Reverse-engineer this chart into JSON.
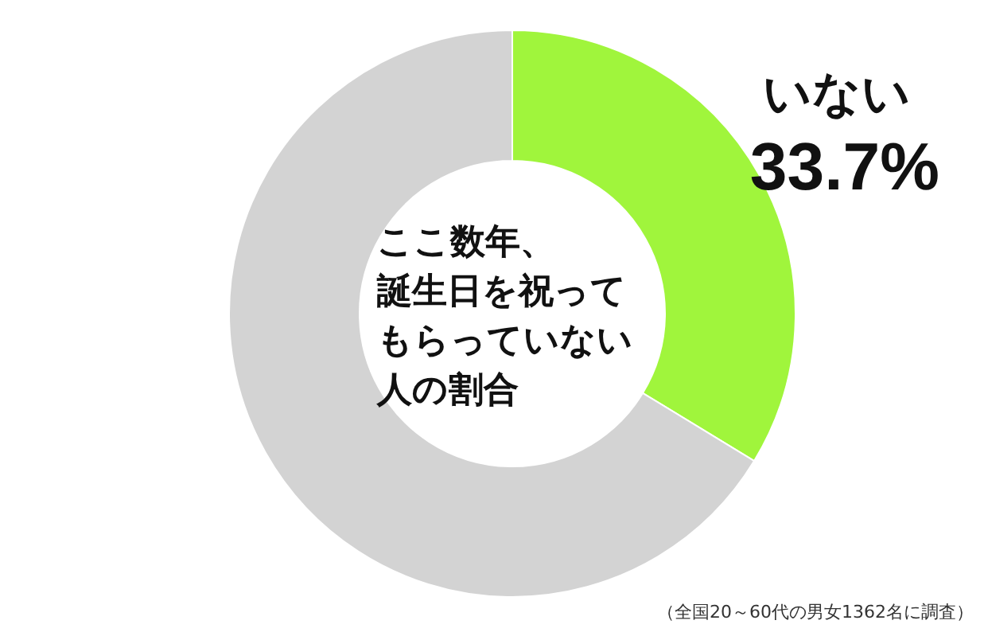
{
  "chart_data": {
    "type": "donut",
    "title": "ここ数年、誕生日を祝ってもらっていない人の割合",
    "categories": [
      "いない",
      null
    ],
    "values": [
      33.7,
      66.3
    ],
    "value_labels": [
      "33.7%",
      null
    ],
    "colors": [
      "#a0f53c",
      "#d3d3d3"
    ],
    "annotations": [
      "（全国20～60代の男女1362名に調査）"
    ]
  }
}
